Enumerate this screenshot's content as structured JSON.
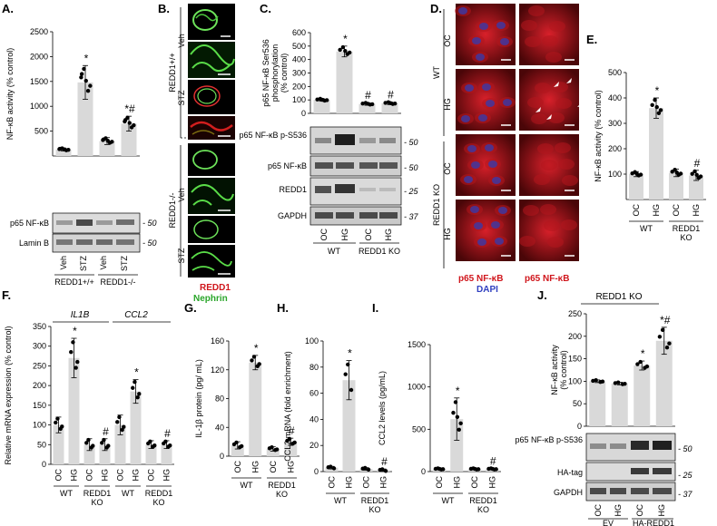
{
  "panels": {
    "A": {
      "label": "A.",
      "chart_data": {
        "type": "bar",
        "ylabel": "NF-κB activity (% control)",
        "yticks": [
          500,
          1000,
          1500,
          2000,
          2500
        ],
        "ylim": [
          0,
          2500
        ],
        "categories": [
          "Veh",
          "STZ",
          "Veh",
          "STZ"
        ],
        "groups": [
          "REDD1+/+",
          "REDD1-/-"
        ],
        "values": [
          130,
          1480,
          300,
          650
        ],
        "errors": [
          30,
          340,
          70,
          150
        ],
        "sig": [
          "",
          "*",
          "",
          "*#"
        ]
      },
      "blots": [
        "p65 NF-κB",
        "Lamin B"
      ],
      "mw": [
        "- 50",
        "- 50"
      ]
    },
    "B": {
      "label": "B.",
      "genotypes": [
        "REDD1+/+",
        "REDD1-/-"
      ],
      "rows": [
        "Veh",
        "STZ",
        "Veh",
        "STZ"
      ],
      "legend": [
        "REDD1",
        "Nephrin"
      ]
    },
    "C": {
      "label": "C.",
      "chart_data": {
        "type": "bar",
        "ylabel": "p65 NF-κB Ser536 phosphorylation (% control)",
        "yticks": [
          0,
          100,
          200,
          300,
          400,
          500,
          600
        ],
        "ylim": [
          0,
          600
        ],
        "categories": [
          "OC",
          "HG",
          "OC",
          "HG"
        ],
        "groups": [
          "WT",
          "REDD1 KO"
        ],
        "values": [
          100,
          460,
          70,
          75
        ],
        "errors": [
          10,
          40,
          10,
          10
        ],
        "sig": [
          "",
          "*",
          "#",
          "#"
        ]
      },
      "blots": [
        "p65 NF-κB p-S536",
        "p65 NF-κB",
        "REDD1",
        "GAPDH"
      ],
      "mw": [
        "- 50",
        "- 50",
        "- 25",
        "- 37"
      ]
    },
    "D": {
      "label": "D.",
      "rows": [
        "OC",
        "HG",
        "OC",
        "HG"
      ],
      "genotypes": [
        "WT",
        "REDD1 KO"
      ],
      "bottom_left": [
        "p65 NF-κB",
        "DAPI"
      ],
      "bottom_right": "p65 NF-κB"
    },
    "E": {
      "label": "E.",
      "chart_data": {
        "type": "bar",
        "ylabel": "NF-κB activity (% control)",
        "yticks": [
          100,
          200,
          300,
          400,
          500
        ],
        "ylim": [
          0,
          500
        ],
        "categories": [
          "OC",
          "HG",
          "OC",
          "HG"
        ],
        "groups": [
          "WT",
          "REDD1 KO"
        ],
        "values": [
          100,
          360,
          105,
          95
        ],
        "errors": [
          10,
          40,
          15,
          20
        ],
        "sig": [
          "",
          "*",
          "",
          "#"
        ]
      }
    },
    "F": {
      "label": "F.",
      "chart_data": {
        "type": "bar",
        "ylabel": "Relative mRNA expression (% control)",
        "yticks": [
          0,
          50,
          100,
          150,
          200,
          250,
          300,
          350
        ],
        "ylim": [
          0,
          350
        ],
        "genes": [
          "IL1B",
          "CCL2"
        ],
        "categories": [
          "OC",
          "HG",
          "OC",
          "HG",
          "OC",
          "HG",
          "OC",
          "HG"
        ],
        "groups": [
          "WT",
          "REDD1 KO",
          "WT",
          "REDD1 KO"
        ],
        "values": [
          100,
          270,
          50,
          50,
          100,
          185,
          50,
          50
        ],
        "errors": [
          20,
          50,
          15,
          15,
          25,
          30,
          10,
          10
        ],
        "sig": [
          "",
          "*",
          "",
          "#",
          "",
          "*",
          "",
          "#"
        ]
      }
    },
    "G": {
      "label": "G.",
      "chart_data": {
        "type": "bar",
        "ylabel": "IL-1β protein (pg/ mL)",
        "yticks": [
          0,
          40,
          80,
          120,
          160
        ],
        "ylim": [
          0,
          160
        ],
        "categories": [
          "OC",
          "HG",
          "OC",
          "HG"
        ],
        "groups": [
          "WT",
          "REDD1 KO"
        ],
        "values": [
          15,
          130,
          10,
          20
        ],
        "errors": [
          5,
          10,
          3,
          5
        ],
        "sig": [
          "",
          "*",
          "",
          "#"
        ]
      }
    },
    "H": {
      "label": "H.",
      "chart_data": {
        "type": "bar",
        "ylabel": "CCL2 mRNA (fold enrichment)",
        "yticks": [
          0,
          20,
          40,
          60,
          80,
          100
        ],
        "ylim": [
          0,
          100
        ],
        "categories": [
          "OC",
          "HG",
          "OC",
          "HG"
        ],
        "groups": [
          "WT",
          "REDD1 KO"
        ],
        "values": [
          3,
          70,
          2,
          1
        ],
        "errors": [
          1,
          15,
          1,
          1
        ],
        "sig": [
          "",
          "*",
          "",
          "#"
        ]
      }
    },
    "I": {
      "label": "I.",
      "chart_data": {
        "type": "bar",
        "ylabel": "CCL2 levels (pg/mL)",
        "yticks": [
          0,
          500,
          1000,
          1500
        ],
        "ylim": [
          0,
          1500
        ],
        "categories": [
          "OC",
          "HG",
          "OC",
          "HG"
        ],
        "groups": [
          "WT",
          "REDD1 KO"
        ],
        "values": [
          30,
          620,
          30,
          30
        ],
        "errors": [
          10,
          250,
          10,
          10
        ],
        "sig": [
          "",
          "*",
          "",
          "#"
        ]
      }
    },
    "J": {
      "label": "J.",
      "title": "REDD1 KO",
      "chart_data": {
        "type": "bar",
        "ylabel": "NF-κB activity (% control)",
        "yticks": [
          0,
          50,
          100,
          150,
          200,
          250
        ],
        "ylim": [
          0,
          250
        ],
        "categories": [
          "OC",
          "HG",
          "OC",
          "HG"
        ],
        "groups": [
          "EV",
          "HA-REDD1"
        ],
        "values": [
          100,
          95,
          135,
          190
        ],
        "errors": [
          3,
          3,
          10,
          30
        ],
        "sig": [
          "",
          "",
          "*",
          "*#"
        ]
      },
      "blots": [
        "p65 NF-κB p-S536",
        "HA-tag",
        "GAPDH"
      ],
      "mw": [
        "- 50",
        "- 25",
        "- 37"
      ]
    }
  }
}
